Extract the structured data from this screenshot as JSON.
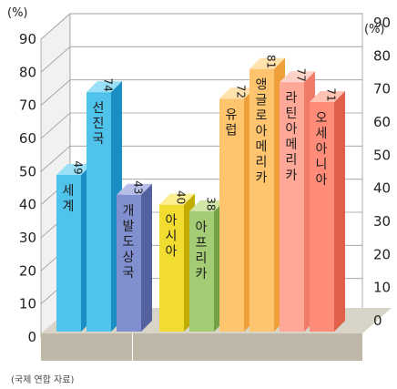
{
  "chart_data": {
    "type": "bar",
    "unit_left": "(%)",
    "unit_right": "(%)",
    "ylim": [
      0,
      90
    ],
    "yticks": [
      0,
      10,
      20,
      30,
      40,
      50,
      60,
      70,
      80,
      90
    ],
    "grid": true,
    "categories": [
      "세계",
      "선진국",
      "개발 도상국",
      "아시아",
      "아프리카",
      "유럽",
      "앵글로아메리카",
      "라틴아메리카",
      "오세아니아"
    ],
    "values": [
      49,
      74,
      43,
      40,
      38,
      72,
      81,
      77,
      71
    ],
    "groups": [
      [
        0,
        1,
        2
      ],
      [
        3,
        4,
        5,
        6,
        7,
        8
      ]
    ],
    "colors": {
      "fronts": [
        "#4fc3ec",
        "#4fc3ec",
        "#7f8fcf",
        "#f2dc2f",
        "#a3cc74",
        "#ffc46e",
        "#ffc46e",
        "#ffa898",
        "#ff8c78"
      ],
      "sides": [
        "#1b8fc4",
        "#1b8fc4",
        "#55609f",
        "#c3ac00",
        "#739f45",
        "#f0a03b",
        "#f0a03b",
        "#ee7c68",
        "#e0604b"
      ],
      "tops": [
        "#9ae0f7",
        "#9ae0f7",
        "#b5bfe7",
        "#fbef8f",
        "#cfe6a7",
        "#ffe2ae",
        "#ffe2ae",
        "#ffd2c7",
        "#ffc2b3"
      ]
    },
    "source": "(국제 연합 자료)"
  }
}
